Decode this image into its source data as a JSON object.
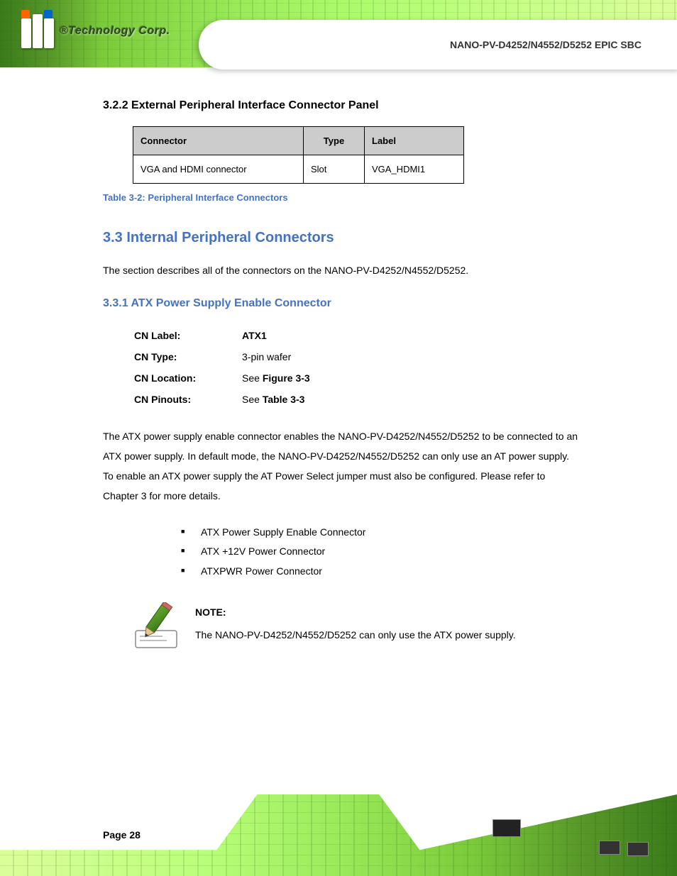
{
  "header": {
    "logo_text": "®Technology Corp.",
    "doc_title": "NANO-PV-D4252/N4552/D5252 EPIC SBC"
  },
  "section_heading": "3.2.2 External Peripheral Interface Connector Panel",
  "table": {
    "headers": {
      "connector": "Connector",
      "type": "Type",
      "label": "Label"
    },
    "row": {
      "connector": "VGA and HDMI connector",
      "type": "Slot",
      "label": "VGA_HDMI1"
    },
    "caption": "Table 3-2: Peripheral Interface Connectors"
  },
  "main_section": "3.3 Internal Peripheral Connectors",
  "main_body": "The section describes all of the connectors on the NANO-PV-D4252/N4552/D5252.",
  "subsection": "3.3.1 ATX Power Supply Enable Connector",
  "atx_table": {
    "rows": [
      {
        "key": "CN Label:",
        "val": "ATX1"
      },
      {
        "key": "CN Type:",
        "val": "3-pin wafer"
      },
      {
        "key": "CN Location:",
        "val": "See Figure 3-3"
      },
      {
        "key": "CN Pinouts:",
        "val": "See Table 3-3"
      }
    ]
  },
  "atx_body": "The ATX power supply enable connector enables the NANO-PV-D4252/N4552/D5252 to be connected to an ATX power supply. In default mode, the NANO-PV-D4252/N4552/D5252 can only use an AT power supply. To enable an ATX power supply the AT Power Select jumper must also be configured. Please refer to Chapter 3 for more details.",
  "bullets": [
    "ATX Power Supply Enable Connector",
    "ATX +12V Power Connector",
    "ATXPWR Power Connector"
  ],
  "note": {
    "label": "NOTE:",
    "text": " The NANO-PV-D4252/N4552/D5252 can only use the ATX power supply."
  },
  "page_number": "Page 28",
  "colors": {
    "heading_blue": "#4472c4",
    "table_header_bg": "#cccccc",
    "pcb_green_dark": "#3a7a1a",
    "pcb_green_light": "#daff9a"
  }
}
